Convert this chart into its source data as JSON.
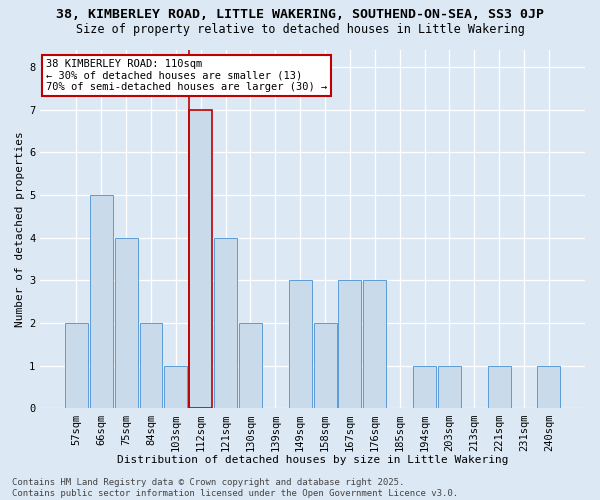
{
  "title": "38, KIMBERLEY ROAD, LITTLE WAKERING, SOUTHEND-ON-SEA, SS3 0JP",
  "subtitle": "Size of property relative to detached houses in Little Wakering",
  "xlabel": "Distribution of detached houses by size in Little Wakering",
  "ylabel": "Number of detached properties",
  "categories": [
    "57sqm",
    "66sqm",
    "75sqm",
    "84sqm",
    "103sqm",
    "112sqm",
    "121sqm",
    "130sqm",
    "139sqm",
    "149sqm",
    "158sqm",
    "167sqm",
    "176sqm",
    "185sqm",
    "194sqm",
    "203sqm",
    "213sqm",
    "221sqm",
    "231sqm",
    "240sqm"
  ],
  "values": [
    2,
    5,
    4,
    2,
    1,
    7,
    4,
    2,
    0,
    3,
    2,
    3,
    3,
    0,
    1,
    1,
    0,
    1,
    0,
    1
  ],
  "bar_color": "#c9daea",
  "bar_edge_color": "#5b9bd5",
  "highlight_index": 5,
  "highlight_line_color": "#c00000",
  "annotation_text": "38 KIMBERLEY ROAD: 110sqm\n← 30% of detached houses are smaller (13)\n70% of semi-detached houses are larger (30) →",
  "annotation_box_color": "#ffffff",
  "annotation_box_edge_color": "#c00000",
  "footer_text": "Contains HM Land Registry data © Crown copyright and database right 2025.\nContains public sector information licensed under the Open Government Licence v3.0.",
  "ylim": [
    0,
    8.4
  ],
  "yticks": [
    0,
    1,
    2,
    3,
    4,
    5,
    6,
    7,
    8
  ],
  "bg_color": "#dce9f5",
  "fig_bg_color": "#dce9f5",
  "grid_color": "#ffffff",
  "title_fontsize": 9.5,
  "subtitle_fontsize": 8.5,
  "xlabel_fontsize": 8,
  "ylabel_fontsize": 8,
  "tick_fontsize": 7.5,
  "footer_fontsize": 6.5,
  "annotation_fontsize": 7.5
}
